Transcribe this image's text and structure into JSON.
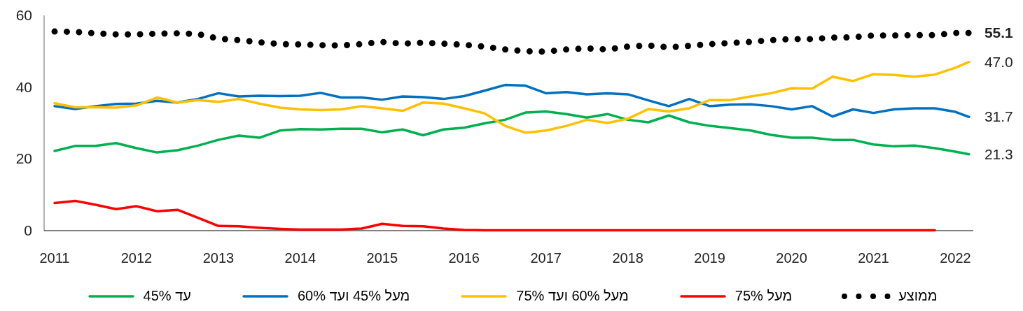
{
  "chart_data": {
    "type": "line",
    "x": [
      "2011-01",
      "2011-04",
      "2011-07",
      "2011-10",
      "2012-01",
      "2012-04",
      "2012-07",
      "2012-10",
      "2013-01",
      "2013-04",
      "2013-07",
      "2013-10",
      "2014-01",
      "2014-04",
      "2014-07",
      "2014-10",
      "2015-01",
      "2015-04",
      "2015-07",
      "2015-10",
      "2016-01",
      "2016-04",
      "2016-07",
      "2016-10",
      "2017-01",
      "2017-04",
      "2017-07",
      "2017-10",
      "2018-01",
      "2018-04",
      "2018-07",
      "2018-10",
      "2019-01",
      "2019-04",
      "2019-07",
      "2019-10",
      "2020-01",
      "2020-04",
      "2020-07",
      "2020-10",
      "2021-01",
      "2021-04",
      "2021-07",
      "2021-10",
      "2022-01",
      "2022-03"
    ],
    "xlim": [
      "2010-11-15",
      "2022-03-20"
    ],
    "xticks": [
      "2011",
      "2012",
      "2013",
      "2014",
      "2015",
      "2016",
      "2017",
      "2018",
      "2019",
      "2020",
      "2021",
      "2022"
    ],
    "ylim": [
      0,
      60
    ],
    "yticks": [
      0,
      20,
      40,
      60
    ],
    "legend": "bottom",
    "series": [
      {
        "name": "עד 45%",
        "color": "#00b050",
        "line_style": "solid",
        "values": [
          22.2,
          23.6,
          23.6,
          24.4,
          23.0,
          21.8,
          22.4,
          23.7,
          25.3,
          26.5,
          25.9,
          27.9,
          28.3,
          28.2,
          28.4,
          28.4,
          27.4,
          28.2,
          26.6,
          28.2,
          28.7,
          29.9,
          30.9,
          32.9,
          33.2,
          32.5,
          31.5,
          32.5,
          30.9,
          30.2,
          32.1,
          30.2,
          29.2,
          28.6,
          27.9,
          26.7,
          25.9,
          25.9,
          25.3,
          25.3,
          24.0,
          23.5,
          23.7,
          23.0,
          22.0,
          21.3
        ],
        "value_labels": [
          null,
          null,
          null,
          null,
          null,
          null,
          null,
          null,
          null,
          null,
          null,
          null,
          null,
          null,
          null,
          null,
          null,
          null,
          null,
          null,
          null,
          null,
          null,
          null,
          null,
          null,
          null,
          null,
          null,
          null,
          null,
          null,
          null,
          null,
          null,
          null,
          null,
          null,
          null,
          null,
          null,
          null,
          null,
          null,
          null,
          "21.3"
        ]
      },
      {
        "name": "מעל 45% ועד 60%",
        "color": "#0070c0",
        "line_style": "solid",
        "values": [
          34.7,
          33.9,
          34.7,
          35.3,
          35.4,
          36.2,
          35.7,
          36.7,
          38.3,
          37.4,
          37.6,
          37.5,
          37.6,
          38.4,
          37.1,
          37.1,
          36.5,
          37.4,
          37.2,
          36.7,
          37.5,
          39.0,
          40.6,
          40.4,
          38.3,
          38.6,
          38.0,
          38.3,
          38.0,
          36.3,
          34.7,
          36.7,
          34.7,
          35.1,
          35.2,
          34.7,
          33.8,
          34.7,
          31.8,
          33.8,
          32.8,
          33.8,
          34.1,
          34.1,
          33.1,
          31.7
        ],
        "value_labels": [
          null,
          null,
          null,
          null,
          null,
          null,
          null,
          null,
          null,
          null,
          null,
          null,
          null,
          null,
          null,
          null,
          null,
          null,
          null,
          null,
          null,
          null,
          null,
          null,
          null,
          null,
          null,
          null,
          null,
          null,
          null,
          null,
          null,
          null,
          null,
          null,
          null,
          null,
          null,
          null,
          null,
          null,
          null,
          null,
          null,
          "31.7"
        ]
      },
      {
        "name": "מעל 60% ועד 75%",
        "color": "#ffc000",
        "line_style": "solid",
        "values": [
          35.5,
          34.4,
          34.4,
          34.3,
          34.9,
          37.1,
          35.7,
          36.4,
          35.9,
          36.7,
          35.4,
          34.3,
          33.8,
          33.6,
          33.8,
          34.7,
          34.1,
          33.4,
          35.7,
          35.4,
          34.1,
          32.7,
          29.2,
          27.3,
          27.9,
          29.2,
          30.9,
          30.0,
          31.2,
          33.9,
          33.2,
          34.1,
          36.4,
          36.4,
          37.4,
          38.3,
          39.7,
          39.6,
          42.9,
          41.7,
          43.6,
          43.4,
          42.9,
          43.5,
          45.4,
          47.0
        ],
        "value_labels": [
          null,
          null,
          null,
          null,
          null,
          null,
          null,
          null,
          null,
          null,
          null,
          null,
          null,
          null,
          null,
          null,
          null,
          null,
          null,
          null,
          null,
          null,
          null,
          null,
          null,
          null,
          null,
          null,
          null,
          null,
          null,
          null,
          null,
          null,
          null,
          null,
          null,
          null,
          null,
          null,
          null,
          null,
          null,
          null,
          null,
          "47.0"
        ]
      },
      {
        "name": "מעל 75%",
        "color": "#ff0000",
        "line_style": "solid",
        "values": [
          7.7,
          8.3,
          7.2,
          6.0,
          6.8,
          5.4,
          5.8,
          3.6,
          1.3,
          1.2,
          0.8,
          0.5,
          0.3,
          0.3,
          0.3,
          0.6,
          1.9,
          1.3,
          1.2,
          0.6,
          0.2,
          0.1,
          0.1,
          0.1,
          0.1,
          0.1,
          0.1,
          0.1,
          0.1,
          0.1,
          0.1,
          0.1,
          0.1,
          0.1,
          0.1,
          0.1,
          0.1,
          0.1,
          0.1,
          0.1,
          0.1,
          0.1,
          0.1,
          0.1,
          null,
          null
        ]
      },
      {
        "name": "ממוצע",
        "color": "#000000",
        "line_style": "dotted",
        "values": [
          55.5,
          55.4,
          55.0,
          54.7,
          54.7,
          54.9,
          55.0,
          54.8,
          53.5,
          53.1,
          52.5,
          52.0,
          51.9,
          51.7,
          51.6,
          52.0,
          52.6,
          52.1,
          52.4,
          52.1,
          51.8,
          51.3,
          50.5,
          50.0,
          49.9,
          50.5,
          50.8,
          50.5,
          51.3,
          51.6,
          51.1,
          51.5,
          52.0,
          52.3,
          52.6,
          53.1,
          53.4,
          53.4,
          53.8,
          53.9,
          54.4,
          54.4,
          54.5,
          54.5,
          55.1,
          55.1
        ],
        "value_labels": [
          null,
          null,
          null,
          null,
          null,
          null,
          null,
          null,
          null,
          null,
          null,
          null,
          null,
          null,
          null,
          null,
          null,
          null,
          null,
          null,
          null,
          null,
          null,
          null,
          null,
          null,
          null,
          null,
          null,
          null,
          null,
          null,
          null,
          null,
          null,
          null,
          null,
          null,
          null,
          null,
          null,
          null,
          null,
          null,
          null,
          "55.1"
        ]
      }
    ]
  }
}
